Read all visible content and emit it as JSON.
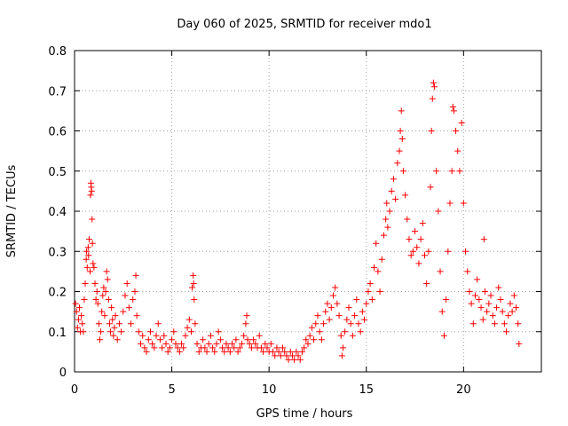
{
  "chart_data": {
    "type": "scatter",
    "title": "Day 060 of 2025, SRMTID for receiver mdo1",
    "xlabel": "GPS time / hours",
    "ylabel": "SRMTID / TECUs",
    "xlim": [
      0,
      24
    ],
    "ylim": [
      0,
      0.8
    ],
    "xticks": [
      0,
      5,
      10,
      15,
      20
    ],
    "yticks": [
      0,
      0.1,
      0.2,
      0.3,
      0.4,
      0.5,
      0.6,
      0.7,
      0.8
    ],
    "xtick_labels": [
      "0",
      "5",
      "10",
      "15",
      "20"
    ],
    "ytick_labels": [
      "0",
      "0.1",
      "0.2",
      "0.3",
      "0.4",
      "0.5",
      "0.6",
      "0.7",
      "0.8"
    ],
    "grid": true,
    "marker": "+",
    "marker_color": "#ff0000",
    "series": [
      {
        "name": "SRMTID",
        "points": [
          [
            0.05,
            0.17
          ],
          [
            0.1,
            0.15
          ],
          [
            0.15,
            0.11
          ],
          [
            0.2,
            0.13
          ],
          [
            0.25,
            0.16
          ],
          [
            0.3,
            0.1
          ],
          [
            0.35,
            0.14
          ],
          [
            0.4,
            0.12
          ],
          [
            0.45,
            0.1
          ],
          [
            0.5,
            0.18
          ],
          [
            0.55,
            0.22
          ],
          [
            0.6,
            0.28
          ],
          [
            0.62,
            0.3
          ],
          [
            0.65,
            0.26
          ],
          [
            0.7,
            0.31
          ],
          [
            0.72,
            0.29
          ],
          [
            0.75,
            0.33
          ],
          [
            0.8,
            0.25
          ],
          [
            0.82,
            0.44
          ],
          [
            0.84,
            0.47
          ],
          [
            0.86,
            0.46
          ],
          [
            0.88,
            0.45
          ],
          [
            0.9,
            0.38
          ],
          [
            0.92,
            0.32
          ],
          [
            0.95,
            0.27
          ],
          [
            1.0,
            0.26
          ],
          [
            1.05,
            0.22
          ],
          [
            1.1,
            0.18
          ],
          [
            1.15,
            0.2
          ],
          [
            1.2,
            0.17
          ],
          [
            1.25,
            0.12
          ],
          [
            1.3,
            0.08
          ],
          [
            1.35,
            0.1
          ],
          [
            1.4,
            0.15
          ],
          [
            1.45,
            0.19
          ],
          [
            1.5,
            0.21
          ],
          [
            1.55,
            0.14
          ],
          [
            1.6,
            0.2
          ],
          [
            1.65,
            0.25
          ],
          [
            1.7,
            0.23
          ],
          [
            1.75,
            0.18
          ],
          [
            1.8,
            0.12
          ],
          [
            1.85,
            0.1
          ],
          [
            1.9,
            0.16
          ],
          [
            1.95,
            0.13
          ],
          [
            2.0,
            0.09
          ],
          [
            2.05,
            0.11
          ],
          [
            2.1,
            0.14
          ],
          [
            2.2,
            0.08
          ],
          [
            2.3,
            0.12
          ],
          [
            2.4,
            0.1
          ],
          [
            2.5,
            0.15
          ],
          [
            2.6,
            0.19
          ],
          [
            2.7,
            0.22
          ],
          [
            2.8,
            0.16
          ],
          [
            2.9,
            0.12
          ],
          [
            3.0,
            0.18
          ],
          [
            3.1,
            0.2
          ],
          [
            3.15,
            0.24
          ],
          [
            3.2,
            0.14
          ],
          [
            3.3,
            0.1
          ],
          [
            3.4,
            0.07
          ],
          [
            3.5,
            0.09
          ],
          [
            3.6,
            0.06
          ],
          [
            3.7,
            0.05
          ],
          [
            3.8,
            0.08
          ],
          [
            3.9,
            0.1
          ],
          [
            4.0,
            0.07
          ],
          [
            4.1,
            0.06
          ],
          [
            4.2,
            0.09
          ],
          [
            4.3,
            0.12
          ],
          [
            4.4,
            0.08
          ],
          [
            4.5,
            0.06
          ],
          [
            4.6,
            0.09
          ],
          [
            4.7,
            0.07
          ],
          [
            4.8,
            0.05
          ],
          [
            4.9,
            0.06
          ],
          [
            5.0,
            0.08
          ],
          [
            5.1,
            0.1
          ],
          [
            5.2,
            0.07
          ],
          [
            5.3,
            0.06
          ],
          [
            5.4,
            0.05
          ],
          [
            5.5,
            0.07
          ],
          [
            5.6,
            0.06
          ],
          [
            5.7,
            0.09
          ],
          [
            5.8,
            0.11
          ],
          [
            5.9,
            0.13
          ],
          [
            6.0,
            0.1
          ],
          [
            6.05,
            0.21
          ],
          [
            6.1,
            0.24
          ],
          [
            6.12,
            0.22
          ],
          [
            6.15,
            0.18
          ],
          [
            6.2,
            0.12
          ],
          [
            6.3,
            0.07
          ],
          [
            6.4,
            0.05
          ],
          [
            6.5,
            0.06
          ],
          [
            6.6,
            0.08
          ],
          [
            6.7,
            0.06
          ],
          [
            6.8,
            0.05
          ],
          [
            6.9,
            0.07
          ],
          [
            7.0,
            0.09
          ],
          [
            7.1,
            0.06
          ],
          [
            7.2,
            0.05
          ],
          [
            7.3,
            0.07
          ],
          [
            7.4,
            0.1
          ],
          [
            7.5,
            0.08
          ],
          [
            7.6,
            0.06
          ],
          [
            7.7,
            0.05
          ],
          [
            7.8,
            0.07
          ],
          [
            7.9,
            0.06
          ],
          [
            8.0,
            0.05
          ],
          [
            8.1,
            0.07
          ],
          [
            8.2,
            0.06
          ],
          [
            8.3,
            0.08
          ],
          [
            8.4,
            0.05
          ],
          [
            8.5,
            0.06
          ],
          [
            8.6,
            0.07
          ],
          [
            8.7,
            0.09
          ],
          [
            8.8,
            0.12
          ],
          [
            8.85,
            0.14
          ],
          [
            8.9,
            0.08
          ],
          [
            9.0,
            0.07
          ],
          [
            9.1,
            0.06
          ],
          [
            9.2,
            0.08
          ],
          [
            9.3,
            0.07
          ],
          [
            9.4,
            0.06
          ],
          [
            9.5,
            0.09
          ],
          [
            9.6,
            0.06
          ],
          [
            9.7,
            0.05
          ],
          [
            9.8,
            0.07
          ],
          [
            9.9,
            0.06
          ],
          [
            10.0,
            0.05
          ],
          [
            10.1,
            0.07
          ],
          [
            10.2,
            0.05
          ],
          [
            10.3,
            0.04
          ],
          [
            10.4,
            0.06
          ],
          [
            10.5,
            0.05
          ],
          [
            10.6,
            0.04
          ],
          [
            10.7,
            0.06
          ],
          [
            10.8,
            0.05
          ],
          [
            10.9,
            0.04
          ],
          [
            11.0,
            0.03
          ],
          [
            11.1,
            0.05
          ],
          [
            11.2,
            0.04
          ],
          [
            11.3,
            0.03
          ],
          [
            11.4,
            0.05
          ],
          [
            11.5,
            0.04
          ],
          [
            11.6,
            0.03
          ],
          [
            11.7,
            0.05
          ],
          [
            11.8,
            0.06
          ],
          [
            11.9,
            0.08
          ],
          [
            12.0,
            0.07
          ],
          [
            12.1,
            0.09
          ],
          [
            12.2,
            0.11
          ],
          [
            12.3,
            0.08
          ],
          [
            12.4,
            0.12
          ],
          [
            12.5,
            0.14
          ],
          [
            12.6,
            0.1
          ],
          [
            12.7,
            0.08
          ],
          [
            12.8,
            0.12
          ],
          [
            12.9,
            0.15
          ],
          [
            13.0,
            0.17
          ],
          [
            13.1,
            0.13
          ],
          [
            13.2,
            0.16
          ],
          [
            13.3,
            0.19
          ],
          [
            13.4,
            0.21
          ],
          [
            13.5,
            0.17
          ],
          [
            13.6,
            0.14
          ],
          [
            13.7,
            0.09
          ],
          [
            13.75,
            0.04
          ],
          [
            13.8,
            0.06
          ],
          [
            13.9,
            0.1
          ],
          [
            14.0,
            0.13
          ],
          [
            14.1,
            0.16
          ],
          [
            14.2,
            0.12
          ],
          [
            14.3,
            0.09
          ],
          [
            14.4,
            0.14
          ],
          [
            14.5,
            0.18
          ],
          [
            14.6,
            0.12
          ],
          [
            14.7,
            0.1
          ],
          [
            14.8,
            0.15
          ],
          [
            14.9,
            0.13
          ],
          [
            15.0,
            0.17
          ],
          [
            15.1,
            0.2
          ],
          [
            15.2,
            0.22
          ],
          [
            15.3,
            0.18
          ],
          [
            15.4,
            0.26
          ],
          [
            15.5,
            0.32
          ],
          [
            15.6,
            0.25
          ],
          [
            15.7,
            0.2
          ],
          [
            15.8,
            0.28
          ],
          [
            15.9,
            0.34
          ],
          [
            16.0,
            0.38
          ],
          [
            16.05,
            0.42
          ],
          [
            16.1,
            0.36
          ],
          [
            16.2,
            0.4
          ],
          [
            16.3,
            0.45
          ],
          [
            16.4,
            0.48
          ],
          [
            16.5,
            0.43
          ],
          [
            16.6,
            0.52
          ],
          [
            16.7,
            0.55
          ],
          [
            16.75,
            0.6
          ],
          [
            16.8,
            0.65
          ],
          [
            16.85,
            0.58
          ],
          [
            16.9,
            0.5
          ],
          [
            17.0,
            0.44
          ],
          [
            17.1,
            0.38
          ],
          [
            17.2,
            0.33
          ],
          [
            17.3,
            0.29
          ],
          [
            17.4,
            0.3
          ],
          [
            17.5,
            0.35
          ],
          [
            17.6,
            0.31
          ],
          [
            17.7,
            0.27
          ],
          [
            17.8,
            0.33
          ],
          [
            17.9,
            0.37
          ],
          [
            18.0,
            0.29
          ],
          [
            18.1,
            0.22
          ],
          [
            18.2,
            0.3
          ],
          [
            18.3,
            0.46
          ],
          [
            18.35,
            0.6
          ],
          [
            18.4,
            0.68
          ],
          [
            18.45,
            0.72
          ],
          [
            18.5,
            0.71
          ],
          [
            18.6,
            0.5
          ],
          [
            18.7,
            0.4
          ],
          [
            18.8,
            0.25
          ],
          [
            18.9,
            0.15
          ],
          [
            19.0,
            0.09
          ],
          [
            19.1,
            0.18
          ],
          [
            19.2,
            0.3
          ],
          [
            19.3,
            0.42
          ],
          [
            19.4,
            0.5
          ],
          [
            19.45,
            0.66
          ],
          [
            19.5,
            0.65
          ],
          [
            19.6,
            0.6
          ],
          [
            19.7,
            0.55
          ],
          [
            19.8,
            0.5
          ],
          [
            19.9,
            0.62
          ],
          [
            20.0,
            0.42
          ],
          [
            20.1,
            0.3
          ],
          [
            20.2,
            0.25
          ],
          [
            20.3,
            0.2
          ],
          [
            20.4,
            0.17
          ],
          [
            20.5,
            0.12
          ],
          [
            20.6,
            0.19
          ],
          [
            20.7,
            0.23
          ],
          [
            20.8,
            0.18
          ],
          [
            20.9,
            0.16
          ],
          [
            21.0,
            0.13
          ],
          [
            21.05,
            0.33
          ],
          [
            21.1,
            0.2
          ],
          [
            21.2,
            0.15
          ],
          [
            21.3,
            0.17
          ],
          [
            21.4,
            0.19
          ],
          [
            21.5,
            0.14
          ],
          [
            21.6,
            0.12
          ],
          [
            21.7,
            0.16
          ],
          [
            21.8,
            0.21
          ],
          [
            21.9,
            0.18
          ],
          [
            22.0,
            0.15
          ],
          [
            22.1,
            0.12
          ],
          [
            22.2,
            0.1
          ],
          [
            22.3,
            0.14
          ],
          [
            22.4,
            0.17
          ],
          [
            22.5,
            0.15
          ],
          [
            22.6,
            0.19
          ],
          [
            22.7,
            0.16
          ],
          [
            22.8,
            0.12
          ],
          [
            22.85,
            0.07
          ]
        ]
      }
    ]
  }
}
